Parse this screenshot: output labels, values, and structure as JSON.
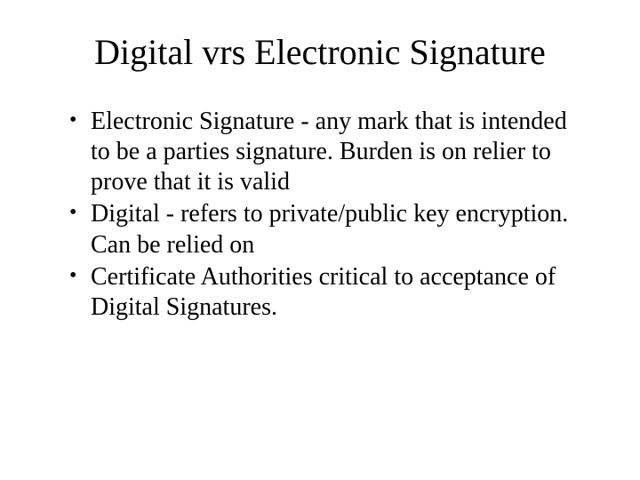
{
  "slide": {
    "title": "Digital vrs Electronic Signature",
    "bullets": [
      "Electronic Signature - any mark that is intended to be a parties signature.  Burden is on relier to prove that it is valid",
      "Digital - refers to private/public key encryption.  Can be relied on",
      "Certificate Authorities critical to acceptance of Digital Signatures."
    ],
    "background_color": "#ffffff",
    "text_color": "#000000",
    "title_fontsize": 40,
    "body_fontsize": 28,
    "font_family": "Times New Roman"
  }
}
